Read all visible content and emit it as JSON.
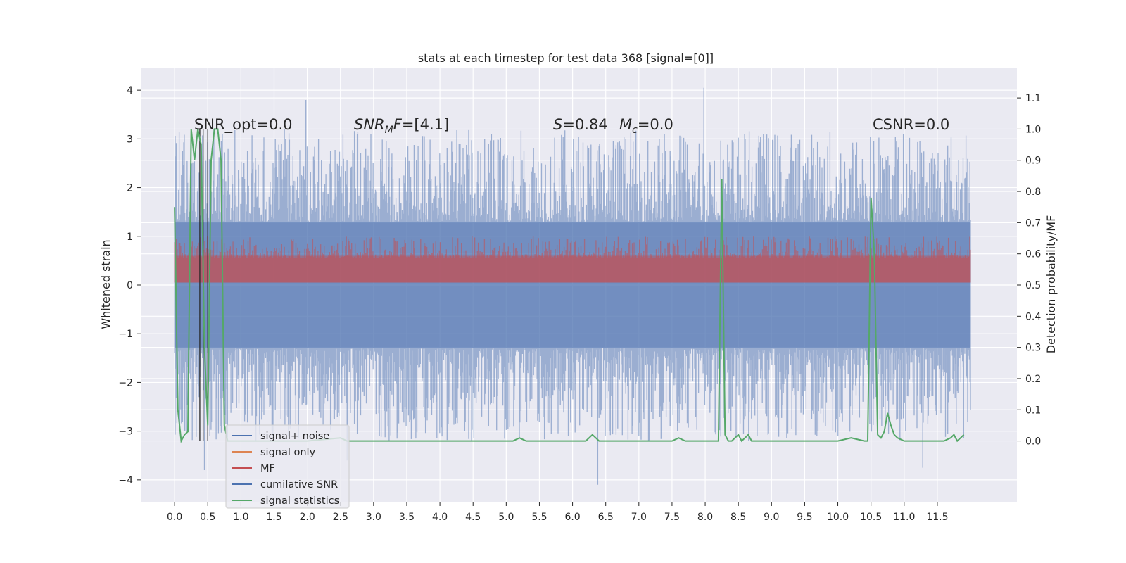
{
  "chart_data": {
    "type": "line",
    "title": "stats at each timestep for test data 368 [signal=[0]]",
    "xlabel": "",
    "ylabel": "Whitened strain",
    "ylabel_right": "Detection probability/MF",
    "xlim": [
      -0.5,
      12.7
    ],
    "ylim": [
      -4.45,
      4.45
    ],
    "ylim_right": [
      -0.195,
      1.195
    ],
    "x_ticks": [
      "0.0",
      "0.5",
      "1.0",
      "1.5",
      "2.0",
      "2.5",
      "3.0",
      "3.5",
      "4.0",
      "4.5",
      "5.0",
      "5.5",
      "6.0",
      "6.5",
      "7.0",
      "7.5",
      "8.0",
      "8.5",
      "9.0",
      "9.5",
      "10.0",
      "10.5",
      "11.0",
      "11.5"
    ],
    "y_ticks": [
      "4",
      "3",
      "2",
      "1",
      "0",
      "−1",
      "−2",
      "−3",
      "−4"
    ],
    "y_ticks_right": [
      "1.1",
      "1.0",
      "0.9",
      "0.8",
      "0.7",
      "0.6",
      "0.5",
      "0.4",
      "0.3",
      "0.2",
      "0.1",
      "0.0"
    ],
    "grid": true,
    "background": "#eaeaf2",
    "legend_position": "lower-left",
    "annotations": {
      "snr_opt": "SNR_opt=0.0",
      "snr_mf_sym": "SNR",
      "snr_mf_sub": "M",
      "snr_mf_rest": "F=[4.1]",
      "s_sym": "S",
      "s_rest": "=0.84",
      "mc_sym": "M",
      "mc_sub": "c",
      "mc_rest": "=0.0",
      "csnr": "CSNR=0.0"
    },
    "series": [
      {
        "name": "signal+ noise",
        "color": "#4c72b0",
        "band": [
          -1.3,
          1.3
        ],
        "peak_max": 4.05,
        "peak_min": -4.1
      },
      {
        "name": "signal only",
        "color": "#dd8452"
      },
      {
        "name": "MF",
        "color": "#c44e52",
        "band": [
          0.05,
          0.6
        ],
        "peak_max": 1.0
      },
      {
        "name": "cumilative SNR",
        "color": "#4c72b0"
      },
      {
        "name": "signal statistics",
        "color": "#55a868",
        "x": [
          0.0,
          0.05,
          0.1,
          0.15,
          0.2,
          0.25,
          0.3,
          0.35,
          0.4,
          0.45,
          0.5,
          0.55,
          0.6,
          0.65,
          0.7,
          0.75,
          0.8,
          0.85,
          0.9,
          1.0,
          1.5,
          2.0,
          2.5,
          2.6,
          2.7,
          3.0,
          4.0,
          5.0,
          5.1,
          5.2,
          5.3,
          5.5,
          6.0,
          6.2,
          6.25,
          6.3,
          6.35,
          6.4,
          6.5,
          7.0,
          7.5,
          7.6,
          7.7,
          8.0,
          8.1,
          8.2,
          8.25,
          8.3,
          8.35,
          8.4,
          8.5,
          8.55,
          8.6,
          8.65,
          8.7,
          8.8,
          9.0,
          9.5,
          10.0,
          10.2,
          10.4,
          10.45,
          10.5,
          10.55,
          10.6,
          10.65,
          10.7,
          10.75,
          10.8,
          10.85,
          10.9,
          11.0,
          11.5,
          11.6,
          11.7,
          11.75,
          11.8,
          11.85,
          11.9
        ],
        "y": [
          0.75,
          0.1,
          0.0,
          0.02,
          0.03,
          1.0,
          0.9,
          1.0,
          0.95,
          0.3,
          0.05,
          0.9,
          1.0,
          1.0,
          0.9,
          0.05,
          0.0,
          0.0,
          0.0,
          0.0,
          0.0,
          0.0,
          0.01,
          0.0,
          0.0,
          0.0,
          0.0,
          0.0,
          0.0,
          0.01,
          0.0,
          0.0,
          0.0,
          0.0,
          0.01,
          0.02,
          0.01,
          0.0,
          0.0,
          0.0,
          0.0,
          0.01,
          0.0,
          0.0,
          0.0,
          0.0,
          0.84,
          0.02,
          0.0,
          0.0,
          0.02,
          0.0,
          0.01,
          0.02,
          0.0,
          0.0,
          0.0,
          0.0,
          0.0,
          0.01,
          0.0,
          0.0,
          0.78,
          0.6,
          0.02,
          0.01,
          0.03,
          0.09,
          0.05,
          0.02,
          0.01,
          0.0,
          0.0,
          0.0,
          0.01,
          0.02,
          0.0,
          0.01,
          0.02
        ]
      },
      {
        "name": "",
        "color": "#262626",
        "verticals": [
          0.38,
          0.43,
          0.5
        ]
      }
    ]
  }
}
